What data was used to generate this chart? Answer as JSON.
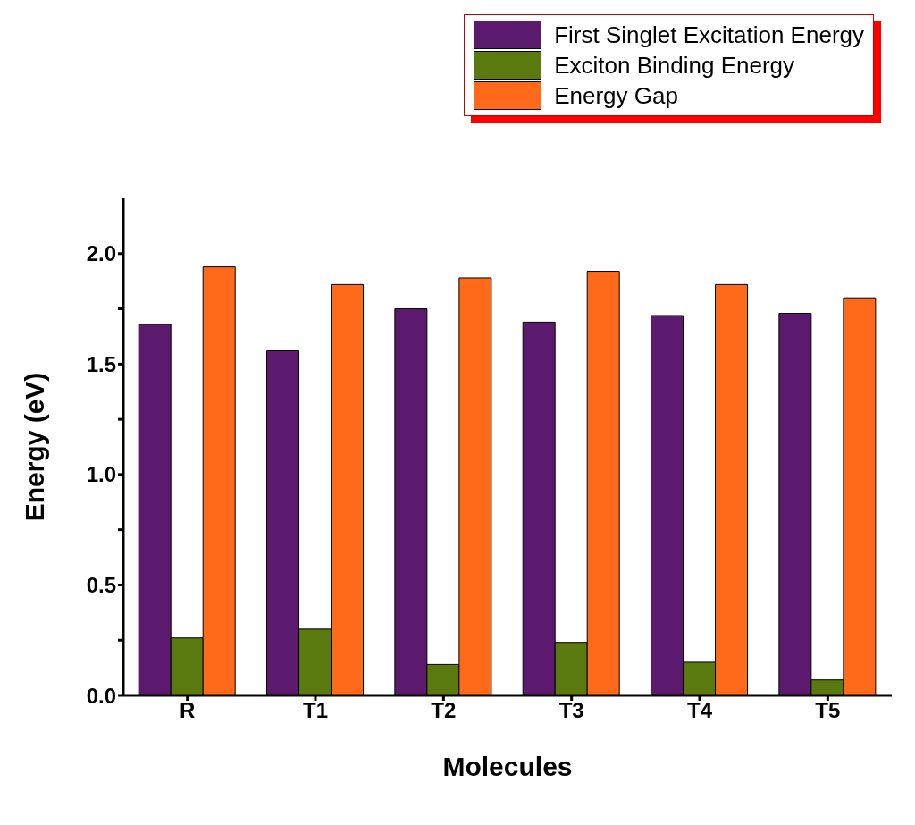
{
  "chart_data": {
    "type": "bar",
    "xlabel": "Molecules",
    "ylabel": "Energy (eV)",
    "categories": [
      "R",
      "T1",
      "T2",
      "T3",
      "T4",
      "T5"
    ],
    "series": [
      {
        "name": "First Singlet Excitation Energy",
        "color": "#5c1a6e",
        "values": [
          1.68,
          1.56,
          1.75,
          1.69,
          1.72,
          1.73
        ]
      },
      {
        "name": "Exciton Binding Energy",
        "color": "#5a7a10",
        "values": [
          0.26,
          0.3,
          0.14,
          0.24,
          0.15,
          0.07
        ]
      },
      {
        "name": "Energy Gap",
        "color": "#ff6a1a",
        "values": [
          1.94,
          1.86,
          1.89,
          1.92,
          1.86,
          1.8
        ]
      }
    ],
    "ylim": [
      0,
      2.25
    ],
    "yticks": [
      {
        "value": 0,
        "label": "0.0"
      },
      {
        "value": 0.25,
        "label": null
      },
      {
        "value": 0.5,
        "label": "0.5"
      },
      {
        "value": 0.75,
        "label": null
      },
      {
        "value": 1,
        "label": "1.0"
      },
      {
        "value": 1.25,
        "label": null
      },
      {
        "value": 1.5,
        "label": "1.5"
      },
      {
        "value": 1.75,
        "label": null
      },
      {
        "value": 2,
        "label": "2.0"
      }
    ],
    "grid": false,
    "legend": "top right"
  }
}
